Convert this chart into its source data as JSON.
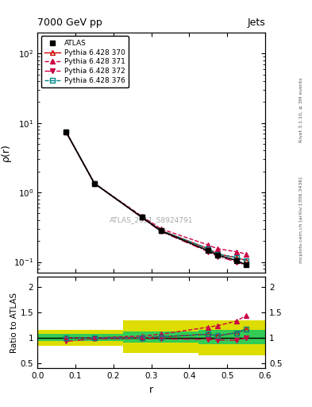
{
  "title": "7000 GeV pp",
  "title_right": "Jets",
  "watermark": "ATLAS_2011_S8924791",
  "rivet_label": "Rivet 3.1.10, ≥ 3M events",
  "mcplots_label": "mcplots.cern.ch [arXiv:1306.3436]",
  "ylabel_main": "ρ(r)",
  "ylabel_ratio": "Ratio to ATLAS",
  "xlabel": "r",
  "xlim": [
    0.0,
    0.6
  ],
  "ylim_main": [
    0.07,
    200
  ],
  "ylim_ratio": [
    0.4,
    2.2
  ],
  "r_values": [
    0.075,
    0.15,
    0.275,
    0.325,
    0.45,
    0.475,
    0.525,
    0.55
  ],
  "atlas_y": [
    7.5,
    1.35,
    0.44,
    0.28,
    0.145,
    0.125,
    0.105,
    0.09
  ],
  "pythia370_y": [
    7.5,
    1.35,
    0.44,
    0.285,
    0.155,
    0.13,
    0.115,
    0.105
  ],
  "pythia371_y": [
    7.5,
    1.35,
    0.455,
    0.3,
    0.175,
    0.155,
    0.14,
    0.13
  ],
  "pythia372_y": [
    7.5,
    1.35,
    0.435,
    0.275,
    0.14,
    0.12,
    0.1,
    0.09
  ],
  "pythia376_y": [
    7.5,
    1.35,
    0.44,
    0.285,
    0.155,
    0.13,
    0.115,
    0.105
  ],
  "ratio370_y": [
    1.0,
    1.0,
    1.0,
    1.02,
    1.07,
    1.04,
    1.1,
    1.17
  ],
  "ratio371_y": [
    1.0,
    1.0,
    1.035,
    1.07,
    1.21,
    1.24,
    1.33,
    1.44
  ],
  "ratio372_y": [
    0.93,
    0.98,
    0.99,
    0.98,
    0.97,
    0.96,
    0.95,
    1.0
  ],
  "ratio376_y": [
    1.0,
    1.0,
    1.0,
    1.02,
    1.07,
    1.04,
    1.1,
    1.17
  ],
  "band_yellow_edges": [
    0.0,
    0.175,
    0.225,
    0.375,
    0.425,
    0.525,
    0.6
  ],
  "band_yellow_lo": [
    0.85,
    0.85,
    0.7,
    0.7,
    0.65,
    0.65,
    0.65
  ],
  "band_yellow_hi": [
    1.15,
    1.15,
    1.35,
    1.35,
    1.35,
    1.35,
    1.35
  ],
  "band_green_edges": [
    0.0,
    0.175,
    0.225,
    0.375,
    0.425,
    0.525,
    0.6
  ],
  "band_green_lo": [
    0.93,
    0.93,
    0.9,
    0.9,
    0.88,
    0.88,
    0.88
  ],
  "band_green_hi": [
    1.07,
    1.07,
    1.12,
    1.12,
    1.15,
    1.15,
    1.15
  ],
  "color_370": "#cc0000",
  "color_371": "#cc0044",
  "color_372": "#cc0044",
  "color_376": "#008888",
  "color_atlas": "black",
  "color_green": "#33cc55",
  "color_yellow": "#dddd00",
  "background": "white"
}
